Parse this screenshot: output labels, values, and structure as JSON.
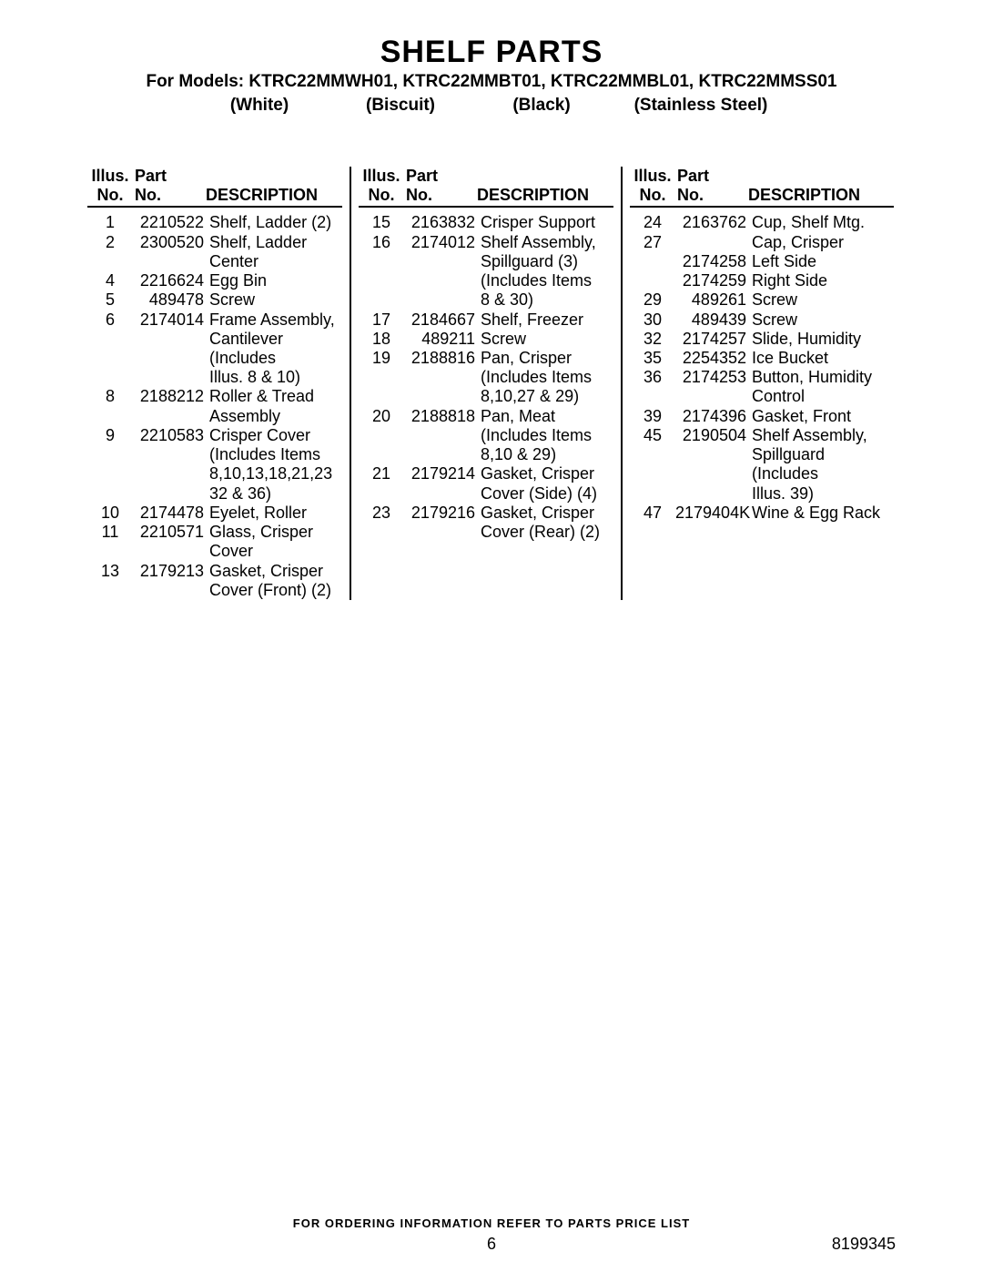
{
  "title": "SHELF PARTS",
  "models_line": "For Models: KTRC22MMWH01, KTRC22MMBT01, KTRC22MMBL01, KTRC22MMSS01",
  "colors": {
    "c1": "(White)",
    "c2": "(Biscuit)",
    "c3": "(Black)",
    "c4": "(Stainless Steel)"
  },
  "headers": {
    "illus1": "Illus.",
    "illus2": "No.",
    "part1": "Part",
    "part2": "No.",
    "desc": "DESCRIPTION"
  },
  "col1": [
    {
      "illus": "1",
      "part": "2210522",
      "desc": "Shelf, Ladder (2)"
    },
    {
      "illus": "2",
      "part": "2300520",
      "desc": "Shelf, Ladder"
    },
    {
      "illus": "",
      "part": "",
      "desc": "Center"
    },
    {
      "illus": "4",
      "part": "2216624",
      "desc": "Egg Bin"
    },
    {
      "illus": "5",
      "part": "489478",
      "desc": "Screw"
    },
    {
      "illus": "6",
      "part": "2174014",
      "desc": "Frame Assembly,"
    },
    {
      "illus": "",
      "part": "",
      "desc": "Cantilever"
    },
    {
      "illus": "",
      "part": "",
      "desc": "(Includes"
    },
    {
      "illus": "",
      "part": "",
      "desc": "Illus. 8 & 10)"
    },
    {
      "illus": "8",
      "part": "2188212",
      "desc": "Roller & Tread"
    },
    {
      "illus": "",
      "part": "",
      "desc": "Assembly"
    },
    {
      "illus": "9",
      "part": "2210583",
      "desc": "Crisper Cover"
    },
    {
      "illus": "",
      "part": "",
      "desc": "(Includes Items"
    },
    {
      "illus": "",
      "part": "",
      "desc": "8,10,13,18,21,23"
    },
    {
      "illus": "",
      "part": "",
      "desc": "32 & 36)"
    },
    {
      "illus": "10",
      "part": "2174478",
      "desc": "Eyelet, Roller"
    },
    {
      "illus": "11",
      "part": "2210571",
      "desc": "Glass, Crisper"
    },
    {
      "illus": "",
      "part": "",
      "desc": "Cover"
    },
    {
      "illus": "13",
      "part": "2179213",
      "desc": "Gasket, Crisper"
    },
    {
      "illus": "",
      "part": "",
      "desc": "Cover (Front) (2)"
    }
  ],
  "col2": [
    {
      "illus": "15",
      "part": "2163832",
      "desc": "Crisper Support"
    },
    {
      "illus": "16",
      "part": "2174012",
      "desc": "Shelf Assembly,"
    },
    {
      "illus": "",
      "part": "",
      "desc": "Spillguard (3)"
    },
    {
      "illus": "",
      "part": "",
      "desc": "(Includes Items"
    },
    {
      "illus": "",
      "part": "",
      "desc": "8 & 30)"
    },
    {
      "illus": "17",
      "part": "2184667",
      "desc": "Shelf, Freezer"
    },
    {
      "illus": "18",
      "part": "489211",
      "desc": "Screw"
    },
    {
      "illus": "19",
      "part": "2188816",
      "desc": "Pan, Crisper"
    },
    {
      "illus": "",
      "part": "",
      "desc": "(Includes Items"
    },
    {
      "illus": "",
      "part": "",
      "desc": "8,10,27 & 29)"
    },
    {
      "illus": "20",
      "part": "2188818",
      "desc": "Pan, Meat"
    },
    {
      "illus": "",
      "part": "",
      "desc": "(Includes Items"
    },
    {
      "illus": "",
      "part": "",
      "desc": "8,10 & 29)"
    },
    {
      "illus": "21",
      "part": "2179214",
      "desc": "Gasket, Crisper"
    },
    {
      "illus": "",
      "part": "",
      "desc": "Cover (Side) (4)"
    },
    {
      "illus": "23",
      "part": "2179216",
      "desc": "Gasket, Crisper"
    },
    {
      "illus": "",
      "part": "",
      "desc": "Cover (Rear) (2)"
    }
  ],
  "col3": [
    {
      "illus": "24",
      "part": "2163762",
      "desc": "Cup, Shelf Mtg."
    },
    {
      "illus": "27",
      "part": "",
      "desc": "Cap, Crisper"
    },
    {
      "illus": "",
      "part": "2174258",
      "desc": "Left Side"
    },
    {
      "illus": "",
      "part": "2174259",
      "desc": "Right Side"
    },
    {
      "illus": "29",
      "part": "489261",
      "desc": "Screw"
    },
    {
      "illus": "30",
      "part": "489439",
      "desc": "Screw"
    },
    {
      "illus": "32",
      "part": "2174257",
      "desc": "Slide, Humidity"
    },
    {
      "illus": "35",
      "part": "2254352",
      "desc": "Ice Bucket"
    },
    {
      "illus": "36",
      "part": "2174253",
      "desc": "Button, Humidity"
    },
    {
      "illus": "",
      "part": "",
      "desc": "Control"
    },
    {
      "illus": "39",
      "part": "2174396",
      "desc": "Gasket, Front"
    },
    {
      "illus": "45",
      "part": "2190504",
      "desc": "Shelf Assembly,"
    },
    {
      "illus": "",
      "part": "",
      "desc": "Spillguard"
    },
    {
      "illus": "",
      "part": "",
      "desc": "(Includes"
    },
    {
      "illus": "",
      "part": "",
      "desc": "Illus. 39)"
    },
    {
      "illus": "47",
      "part": "2179404K",
      "desc": "Wine & Egg Rack"
    }
  ],
  "footer": "FOR ORDERING INFORMATION REFER TO PARTS PRICE LIST",
  "page_number": "6",
  "doc_number": "8199345"
}
